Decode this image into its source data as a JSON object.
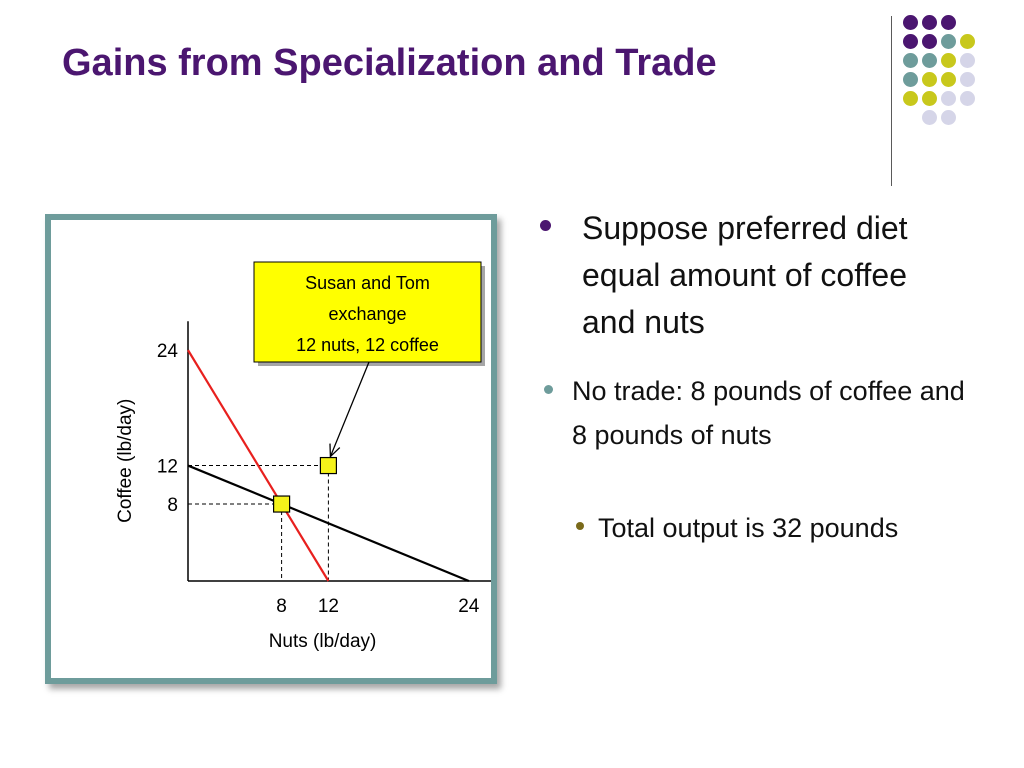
{
  "slide": {
    "title": "Gains from Specialization and Trade"
  },
  "decoration": {
    "dot_colors": {
      "purple": "#4b1670",
      "teal": "#6e9c9b",
      "yellow": "#c8c81c",
      "lavender": "#d5d5e8"
    },
    "dot_grid": [
      [
        "purple",
        "purple",
        "purple",
        null
      ],
      [
        "purple",
        "purple",
        "teal",
        "yellow"
      ],
      [
        "teal",
        "teal",
        "yellow",
        "lavender"
      ],
      [
        "teal",
        "yellow",
        "yellow",
        "lavender"
      ],
      [
        "yellow",
        "yellow",
        "lavender",
        "lavender"
      ],
      [
        null,
        "lavender",
        "lavender",
        null
      ]
    ],
    "frame_color": "#6e9c9b"
  },
  "bullets": {
    "item1": "Suppose preferred diet equal amount of coffee and nuts",
    "item2": "No trade: 8 pounds of coffee and 8 pounds of nuts",
    "item3": "Total output is 32 pounds"
  },
  "chart_data": {
    "type": "line",
    "title": "",
    "xlabel": "Nuts  (lb/day)",
    "ylabel": "Coffee  (lb/day)",
    "x_ticks": [
      "8",
      "12",
      "24"
    ],
    "y_ticks": [
      "24",
      "12",
      "8"
    ],
    "xlim": [
      0,
      26
    ],
    "ylim": [
      0,
      27
    ],
    "series": [
      {
        "color": "#e8201e",
        "points": [
          [
            0,
            24
          ],
          [
            12,
            0
          ]
        ]
      },
      {
        "color": "#000000",
        "points": [
          [
            0,
            12
          ],
          [
            24,
            0
          ]
        ]
      }
    ],
    "markers": [
      {
        "x": 8,
        "y": 8,
        "color": "#f5f21a"
      },
      {
        "x": 12,
        "y": 12,
        "color": "#f5f21a"
      }
    ],
    "annotation": {
      "lines": [
        "Susan and Tom",
        "exchange",
        "12 nuts, 12 coffee"
      ],
      "target": [
        12,
        12
      ],
      "fill": "#ffff00"
    }
  }
}
